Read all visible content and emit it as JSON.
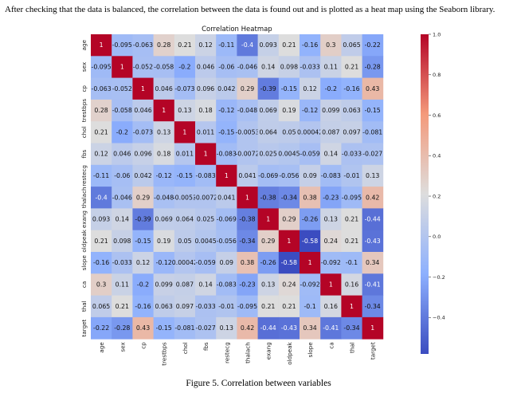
{
  "intro_text": "After checking that the data is balanced, the correlation between the data is found out and is plotted as a heat map using the Seaborn library.",
  "caption": "Figure 5. Correlation between variables",
  "chart_data": {
    "type": "heatmap",
    "title": "Correlation Heatmap",
    "variables": [
      "age",
      "sex",
      "cp",
      "trestbps",
      "chol",
      "fbs",
      "restecg",
      "thalach",
      "exang",
      "oldpeak",
      "slope",
      "ca",
      "thal",
      "target"
    ],
    "values": [
      [
        1,
        -0.095,
        -0.063,
        0.28,
        0.21,
        0.12,
        -0.11,
        -0.4,
        0.093,
        0.21,
        -0.16,
        0.3,
        0.065,
        -0.22
      ],
      [
        -0.095,
        1,
        -0.052,
        -0.058,
        -0.2,
        0.046,
        -0.06,
        -0.046,
        0.14,
        0.098,
        -0.033,
        0.11,
        0.21,
        -0.28
      ],
      [
        -0.063,
        -0.052,
        1,
        0.046,
        -0.073,
        0.096,
        0.042,
        0.29,
        -0.39,
        -0.15,
        0.12,
        -0.2,
        -0.16,
        0.43
      ],
      [
        0.28,
        -0.058,
        0.046,
        1,
        0.13,
        0.18,
        -0.12,
        -0.048,
        0.069,
        0.19,
        -0.12,
        0.099,
        0.063,
        -0.15
      ],
      [
        0.21,
        -0.2,
        -0.073,
        0.13,
        1,
        0.011,
        -0.15,
        -0.0053,
        0.064,
        0.05,
        0.00042,
        0.087,
        0.097,
        -0.081
      ],
      [
        0.12,
        0.046,
        0.096,
        0.18,
        0.011,
        1,
        -0.083,
        -0.0072,
        0.025,
        0.0045,
        -0.059,
        0.14,
        -0.033,
        -0.027
      ],
      [
        -0.11,
        -0.06,
        0.042,
        -0.12,
        -0.15,
        -0.083,
        1,
        0.041,
        -0.069,
        -0.056,
        0.09,
        -0.083,
        -0.01,
        0.13
      ],
      [
        -0.4,
        -0.046,
        0.29,
        -0.048,
        -0.0053,
        -0.0072,
        0.041,
        1,
        -0.38,
        -0.34,
        0.38,
        -0.23,
        -0.095,
        0.42
      ],
      [
        0.093,
        0.14,
        -0.39,
        0.069,
        0.064,
        0.025,
        -0.069,
        -0.38,
        1,
        0.29,
        -0.26,
        0.13,
        0.21,
        -0.44
      ],
      [
        0.21,
        0.098,
        -0.15,
        0.19,
        0.05,
        0.0045,
        -0.056,
        -0.34,
        0.29,
        1,
        -0.58,
        0.24,
        0.21,
        -0.43
      ],
      [
        -0.16,
        -0.033,
        0.12,
        -0.12,
        0.00042,
        -0.059,
        0.09,
        0.38,
        -0.26,
        -0.58,
        1,
        -0.092,
        -0.1,
        0.34
      ],
      [
        0.3,
        0.11,
        -0.2,
        0.099,
        0.087,
        0.14,
        -0.083,
        -0.23,
        0.13,
        0.24,
        -0.092,
        1,
        0.16,
        -0.41
      ],
      [
        0.065,
        0.21,
        -0.16,
        0.063,
        0.097,
        -0.033,
        -0.01,
        -0.095,
        0.21,
        0.21,
        -0.1,
        0.16,
        1,
        -0.34
      ],
      [
        -0.22,
        -0.28,
        0.43,
        -0.15,
        -0.081,
        -0.027,
        0.13,
        0.42,
        -0.44,
        -0.43,
        0.34,
        -0.41,
        -0.34,
        1
      ]
    ],
    "cell_labels": [
      [
        "1",
        "-0.095",
        "-0.063",
        "0.28",
        "0.21",
        "0.12",
        "-0.11",
        "-0.4",
        "0.093",
        "0.21",
        "-0.16",
        "0.3",
        "0.065",
        "-0.22"
      ],
      [
        "-0.095",
        "1",
        "-0.052",
        "-0.058",
        "-0.2",
        "0.046",
        "-0.06",
        "-0.046",
        "0.14",
        "0.098",
        "-0.033",
        "0.11",
        "0.21",
        "-0.28"
      ],
      [
        "-0.063",
        "-0.052",
        "1",
        "0.046",
        "-0.073",
        "0.096",
        "0.042",
        "0.29",
        "-0.39",
        "-0.15",
        "0.12",
        "-0.2",
        "-0.16",
        "0.43"
      ],
      [
        "0.28",
        "-0.058",
        "0.046",
        "1",
        "0.13",
        "0.18",
        "-0.12",
        "-0.048",
        "0.069",
        "0.19",
        "-0.12",
        "0.099",
        "0.063",
        "-0.15"
      ],
      [
        "0.21",
        "-0.2",
        "-0.073",
        "0.13",
        "1",
        "0.011",
        "-0.15",
        "-0.0053",
        "0.064",
        "0.05",
        "0.00042",
        "0.087",
        "0.097",
        "-0.081"
      ],
      [
        "0.12",
        "0.046",
        "0.096",
        "0.18",
        "0.011",
        "1",
        "-0.083",
        "-0.0072",
        "0.025",
        "0.0045",
        "-0.059",
        "0.14",
        "-0.033",
        "-0.027"
      ],
      [
        "-0.11",
        "-0.06",
        "0.042",
        "-0.12",
        "-0.15",
        "-0.083",
        "1",
        "0.041",
        "-0.069",
        "-0.056",
        "0.09",
        "-0.083",
        "-0.01",
        "0.13"
      ],
      [
        "-0.4",
        "-0.046",
        "0.29",
        "-0.048",
        "-0.0053",
        "-0.0072",
        "0.041",
        "1",
        "-0.38",
        "-0.34",
        "0.38",
        "-0.23",
        "-0.095",
        "0.42"
      ],
      [
        "0.093",
        "0.14",
        "-0.39",
        "0.069",
        "0.064",
        "0.025",
        "-0.069",
        "-0.38",
        "1",
        "0.29",
        "-0.26",
        "0.13",
        "0.21",
        "-0.44"
      ],
      [
        "0.21",
        "0.098",
        "-0.15",
        "0.19",
        "0.05",
        "0.0045",
        "-0.056",
        "-0.34",
        "0.29",
        "1",
        "-0.58",
        "0.24",
        "0.21",
        "-0.43"
      ],
      [
        "-0.16",
        "-0.033",
        "0.12",
        "-0.12",
        "0.00042",
        "-0.059",
        "0.09",
        "0.38",
        "-0.26",
        "-0.58",
        "1",
        "-0.092",
        "-0.1",
        "0.34"
      ],
      [
        "0.3",
        "0.11",
        "-0.2",
        "0.099",
        "0.087",
        "0.14",
        "-0.083",
        "-0.23",
        "0.13",
        "0.24",
        "-0.092",
        "1",
        "0.16",
        "-0.41"
      ],
      [
        "0.065",
        "0.21",
        "-0.16",
        "0.063",
        "0.097",
        "-0.033",
        "-0.01",
        "-0.095",
        "0.21",
        "0.21",
        "-0.1",
        "0.16",
        "1",
        "-0.34"
      ],
      [
        "-0.22",
        "-0.28",
        "0.43",
        "-0.15",
        "-0.081",
        "-0.027",
        "0.13",
        "0.42",
        "-0.44",
        "-0.43",
        "0.34",
        "-0.41",
        "-0.34",
        "1"
      ]
    ],
    "colormap": "coolwarm",
    "vmin": -0.58,
    "vmax": 1.0,
    "colorbar_ticks": [
      1.0,
      0.8,
      0.6,
      0.4,
      0.2,
      0.0,
      -0.2,
      -0.4
    ],
    "colorbar_tick_labels": [
      "1.0",
      "0.8",
      "0.6",
      "0.4",
      "0.2",
      "0.0",
      "−0.2",
      "−0.4"
    ],
    "xlabel": "",
    "ylabel": "",
    "annotated": true
  }
}
